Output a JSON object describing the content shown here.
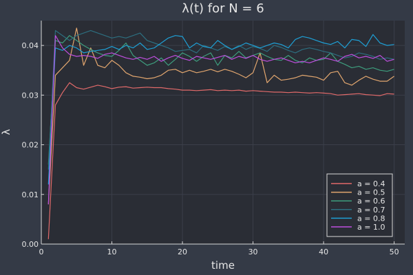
{
  "chart_data": {
    "type": "line",
    "title": "λ(t) for N = 6",
    "xlabel": "time",
    "ylabel": "λ",
    "xlim": [
      0,
      51.5
    ],
    "ylim": [
      0,
      0.045
    ],
    "xticks": [
      0,
      10,
      20,
      30,
      40,
      50
    ],
    "yticks": [
      0.0,
      0.01,
      0.02,
      0.03,
      0.04
    ],
    "ytick_labels": [
      "0.00",
      "0.01",
      "0.02",
      "0.03",
      "0.04"
    ],
    "grid": true,
    "legend_position": "bottom-right",
    "x": [
      1,
      2,
      3,
      4,
      5,
      6,
      7,
      8,
      9,
      10,
      11,
      12,
      13,
      14,
      15,
      16,
      17,
      18,
      19,
      20,
      21,
      22,
      23,
      24,
      25,
      26,
      27,
      28,
      29,
      30,
      31,
      32,
      33,
      34,
      35,
      36,
      37,
      38,
      39,
      40,
      41,
      42,
      43,
      44,
      45,
      46,
      47,
      48,
      49,
      50
    ],
    "series": [
      {
        "name": "a = 0.4",
        "color": "#e26a6a",
        "values": [
          0.001,
          0.028,
          0.0305,
          0.0325,
          0.0315,
          0.0312,
          0.0316,
          0.032,
          0.0317,
          0.0313,
          0.0316,
          0.0317,
          0.0314,
          0.0315,
          0.0316,
          0.0315,
          0.0315,
          0.0313,
          0.0312,
          0.031,
          0.031,
          0.0309,
          0.031,
          0.0311,
          0.0309,
          0.031,
          0.0309,
          0.031,
          0.0308,
          0.0309,
          0.0308,
          0.0307,
          0.0306,
          0.0306,
          0.0305,
          0.0306,
          0.0305,
          0.0304,
          0.0305,
          0.0304,
          0.0303,
          0.03,
          0.0301,
          0.0302,
          0.0303,
          0.0301,
          0.03,
          0.0299,
          0.0303,
          0.0302
        ]
      },
      {
        "name": "a = 0.5",
        "color": "#e3a76f",
        "values": [
          0.008,
          0.034,
          0.0355,
          0.037,
          0.0435,
          0.036,
          0.0395,
          0.036,
          0.0355,
          0.037,
          0.036,
          0.0345,
          0.0338,
          0.0336,
          0.0333,
          0.0335,
          0.034,
          0.035,
          0.0352,
          0.0345,
          0.035,
          0.0345,
          0.0348,
          0.0352,
          0.0347,
          0.0352,
          0.0348,
          0.0342,
          0.0335,
          0.0345,
          0.0385,
          0.0325,
          0.034,
          0.033,
          0.0332,
          0.0335,
          0.034,
          0.0338,
          0.0336,
          0.033,
          0.0345,
          0.0348,
          0.0325,
          0.032,
          0.033,
          0.0338,
          0.0332,
          0.0328,
          0.0328,
          0.0338
        ]
      },
      {
        "name": "a = 0.6",
        "color": "#3e9e7e",
        "values": [
          0.016,
          0.041,
          0.0405,
          0.042,
          0.041,
          0.04,
          0.0392,
          0.0385,
          0.038,
          0.0378,
          0.039,
          0.0405,
          0.038,
          0.037,
          0.036,
          0.0365,
          0.0375,
          0.036,
          0.0372,
          0.0385,
          0.0378,
          0.0368,
          0.0378,
          0.0385,
          0.036,
          0.038,
          0.0375,
          0.0388,
          0.0375,
          0.038,
          0.0385,
          0.0378,
          0.0372,
          0.037,
          0.038,
          0.037,
          0.0365,
          0.0375,
          0.037,
          0.0372,
          0.0385,
          0.0368,
          0.0362,
          0.0355,
          0.0358,
          0.0352,
          0.0355,
          0.035,
          0.0348,
          0.0352
        ]
      },
      {
        "name": "a = 0.7",
        "color": "#2d6f80",
        "values": [
          0.015,
          0.043,
          0.042,
          0.041,
          0.042,
          0.0425,
          0.043,
          0.0425,
          0.042,
          0.0415,
          0.0418,
          0.0415,
          0.042,
          0.0425,
          0.041,
          0.0405,
          0.04,
          0.0395,
          0.0388,
          0.039,
          0.0392,
          0.0385,
          0.04,
          0.0395,
          0.039,
          0.0398,
          0.0392,
          0.04,
          0.0392,
          0.0398,
          0.0394,
          0.0388,
          0.04,
          0.0396,
          0.039,
          0.0385,
          0.0392,
          0.0395,
          0.0392,
          0.0388,
          0.0385,
          0.038,
          0.0375,
          0.0378,
          0.0385,
          0.0382,
          0.0378,
          0.0372,
          0.0375,
          0.0372
        ]
      },
      {
        "name": "a = 0.8",
        "color": "#1ea0d6",
        "values": [
          0.012,
          0.0395,
          0.039,
          0.04,
          0.0395,
          0.0385,
          0.0388,
          0.039,
          0.0392,
          0.0398,
          0.0392,
          0.04,
          0.0395,
          0.0405,
          0.0392,
          0.0395,
          0.0405,
          0.0415,
          0.042,
          0.0418,
          0.0395,
          0.0405,
          0.0398,
          0.0395,
          0.041,
          0.04,
          0.0392,
          0.0398,
          0.0405,
          0.04,
          0.0395,
          0.04,
          0.0405,
          0.0402,
          0.0395,
          0.0412,
          0.0418,
          0.0415,
          0.041,
          0.0405,
          0.0402,
          0.0408,
          0.0395,
          0.0412,
          0.041,
          0.0398,
          0.0422,
          0.0405,
          0.04,
          0.0402
        ]
      },
      {
        "name": "a = 1.0",
        "color": "#c04fe0",
        "values": [
          0.008,
          0.042,
          0.0395,
          0.0382,
          0.0378,
          0.038,
          0.0378,
          0.0374,
          0.0382,
          0.0385,
          0.038,
          0.0375,
          0.0372,
          0.0376,
          0.0372,
          0.0378,
          0.0368,
          0.0375,
          0.038,
          0.0374,
          0.037,
          0.0378,
          0.0375,
          0.0372,
          0.0376,
          0.038,
          0.0372,
          0.0378,
          0.0374,
          0.038,
          0.0372,
          0.0368,
          0.0372,
          0.0375,
          0.037,
          0.0365,
          0.0368,
          0.0365,
          0.037,
          0.0375,
          0.0372,
          0.0368,
          0.0378,
          0.0382,
          0.0375,
          0.0378,
          0.0374,
          0.038,
          0.0368,
          0.0372
        ]
      }
    ]
  }
}
